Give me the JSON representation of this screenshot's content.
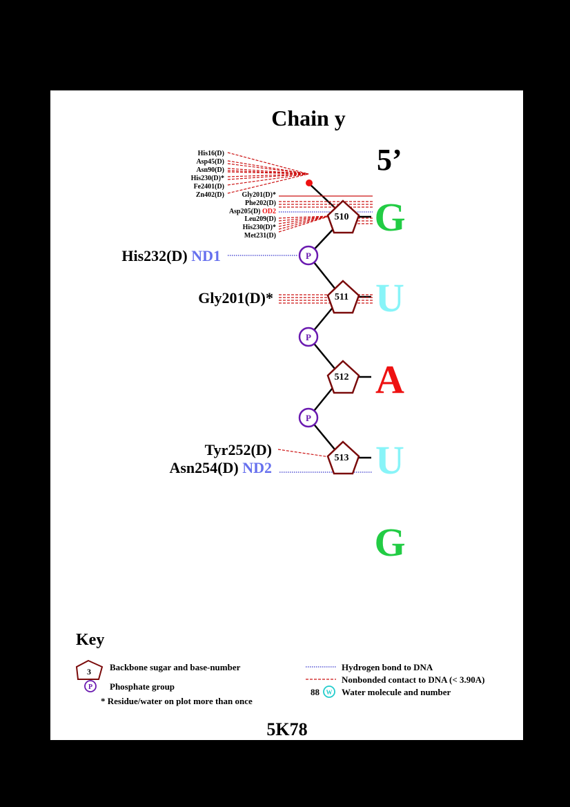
{
  "chain_title": "Chain y",
  "end_label": "5’",
  "nucleotides": [
    {
      "number": "510",
      "base": "G",
      "base_color": "#22cc44"
    },
    {
      "number": "511",
      "base": "U",
      "base_color": "#88f4f8"
    },
    {
      "number": "512",
      "base": "A",
      "base_color": "#ee1111"
    },
    {
      "number": "513",
      "base": "U",
      "base_color": "#88f4f8"
    },
    {
      "number": "",
      "base": "G",
      "base_color": "#22cc44"
    }
  ],
  "phosphate_letter": "P",
  "contacts": {
    "water_cluster": [
      "His16(D)",
      "Asp45(D)",
      "Asn90(D)",
      "His230(D)*",
      "Fe2401(D)",
      "Zn402(D)"
    ],
    "sugar_510": [
      {
        "residue": "Gly201(D)*",
        "atom": ""
      },
      {
        "residue": "Phe202(D)",
        "atom": ""
      },
      {
        "residue": "Asp205(D)",
        "atom": "OD2"
      },
      {
        "residue": "Leu209(D)",
        "atom": ""
      },
      {
        "residue": "His230(D)*",
        "atom": ""
      },
      {
        "residue": "Met231(D)",
        "atom": ""
      }
    ],
    "phosphate_1": {
      "residue": "His232(D)",
      "atom": "ND1"
    },
    "sugar_511": {
      "residue": "Gly201(D)*",
      "atom": ""
    },
    "sugar_513": [
      {
        "residue": "Tyr252(D)",
        "atom": ""
      },
      {
        "residue": "Asn254(D)",
        "atom": "ND2"
      }
    ]
  },
  "colors": {
    "sugar": "#7a0a0a",
    "phosphate": "#6a1ab0",
    "hbond": "#3333cc",
    "nonbonded": "#cc1111",
    "atom_blue": "#6670ee",
    "atom_red": "#ee1111",
    "water": "#22cccc"
  },
  "key": {
    "title": "Key",
    "sugar_example_number": "3",
    "sugar_text": "Backbone sugar and base-number",
    "phosphate_text": "Phosphate group",
    "star_text": "* Residue/water on plot more than once",
    "hbond_text": "Hydrogen bond to DNA",
    "nonbonded_text": "Nonbonded contact to DNA (< 3.90A)",
    "water_number": "88",
    "water_letter": "W",
    "water_text": "Water molecule and number"
  },
  "pdb_id": "5K78"
}
